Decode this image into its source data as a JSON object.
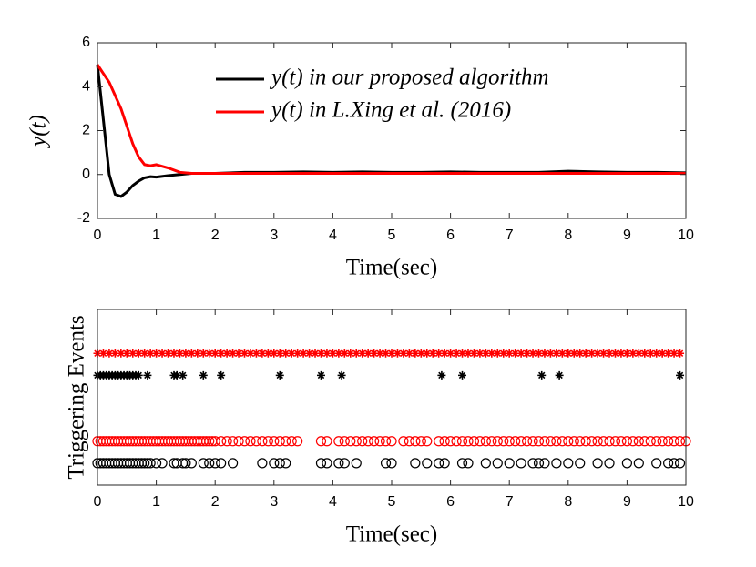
{
  "chart_data": [
    {
      "type": "line",
      "ylabel": "y(t)",
      "xlabel": "Time(sec)",
      "xlim": [
        0,
        10
      ],
      "ylim": [
        -2,
        6
      ],
      "xticks": [
        0,
        1,
        2,
        3,
        4,
        5,
        6,
        7,
        8,
        9,
        10
      ],
      "yticks": [
        -2,
        0,
        2,
        4,
        6
      ],
      "legend": "upper right",
      "x": [
        0,
        0.1,
        0.2,
        0.3,
        0.4,
        0.5,
        0.6,
        0.7,
        0.8,
        0.9,
        1.0,
        1.2,
        1.4,
        1.6,
        1.8,
        2,
        2.5,
        3,
        3.5,
        4,
        4.5,
        5,
        5.5,
        6,
        6.5,
        7,
        7.5,
        8,
        8.5,
        9,
        9.5,
        10
      ],
      "series": [
        {
          "name": "y(t) in our proposed algorithm",
          "color": "#000000",
          "values": [
            5,
            2.5,
            0,
            -0.9,
            -1.0,
            -0.8,
            -0.5,
            -0.3,
            -0.15,
            -0.1,
            -0.12,
            -0.05,
            0,
            0.05,
            0.05,
            0.05,
            0.1,
            0.1,
            0.12,
            0.1,
            0.12,
            0.1,
            0.1,
            0.12,
            0.1,
            0.1,
            0.1,
            0.15,
            0.12,
            0.1,
            0.1,
            0.08
          ]
        },
        {
          "name": "y(t) in  L.Xing et al. (2016)",
          "color": "#ff0000",
          "values": [
            5,
            4.6,
            4.2,
            3.6,
            3.0,
            2.2,
            1.4,
            0.8,
            0.45,
            0.4,
            0.45,
            0.3,
            0.1,
            0.05,
            0.05,
            0.05,
            0.05,
            0.05,
            0.05,
            0.05,
            0.05,
            0.05,
            0.05,
            0.05,
            0.05,
            0.05,
            0.05,
            0.05,
            0.05,
            0.05,
            0.05,
            0.05
          ]
        }
      ]
    },
    {
      "type": "scatter",
      "ylabel": "Triggering Events",
      "xlabel": "Time(sec)",
      "xlim": [
        0,
        10
      ],
      "ylim": [
        0,
        8
      ],
      "xticks": [
        0,
        1,
        2,
        3,
        4,
        5,
        6,
        7,
        8,
        9,
        10
      ],
      "series": [
        {
          "color": "#ff0000",
          "marker": "star",
          "y": 6,
          "x": [
            0,
            0.1,
            0.2,
            0.3,
            0.4,
            0.5,
            0.6,
            0.7,
            0.8,
            0.9,
            1.0,
            1.1,
            1.2,
            1.3,
            1.4,
            1.5,
            1.6,
            1.7,
            1.8,
            1.9,
            2.0,
            2.1,
            2.2,
            2.3,
            2.4,
            2.5,
            2.6,
            2.7,
            2.8,
            2.9,
            3.0,
            3.1,
            3.2,
            3.3,
            3.4,
            3.5,
            3.6,
            3.7,
            3.8,
            3.9,
            4.0,
            4.1,
            4.2,
            4.3,
            4.4,
            4.5,
            4.6,
            4.7,
            4.8,
            4.9,
            5.0,
            5.1,
            5.2,
            5.3,
            5.4,
            5.5,
            5.6,
            5.7,
            5.8,
            5.9,
            6.0,
            6.1,
            6.2,
            6.3,
            6.4,
            6.5,
            6.6,
            6.7,
            6.8,
            6.9,
            7.0,
            7.1,
            7.2,
            7.3,
            7.4,
            7.5,
            7.6,
            7.7,
            7.8,
            7.9,
            8.0,
            8.1,
            8.2,
            8.3,
            8.4,
            8.5,
            8.6,
            8.7,
            8.8,
            8.9,
            9.0,
            9.1,
            9.2,
            9.3,
            9.4,
            9.5,
            9.6,
            9.7,
            9.8,
            9.9
          ]
        },
        {
          "color": "#000000",
          "marker": "star",
          "y": 5,
          "x": [
            0,
            0.05,
            0.1,
            0.15,
            0.2,
            0.25,
            0.3,
            0.35,
            0.4,
            0.45,
            0.5,
            0.55,
            0.6,
            0.65,
            0.7,
            0.85,
            1.3,
            1.35,
            1.45,
            1.8,
            2.1,
            3.1,
            3.8,
            4.15,
            5.85,
            6.2,
            7.55,
            7.85,
            9.9
          ]
        },
        {
          "color": "#ff0000",
          "marker": "circle",
          "y": 2,
          "x": [
            0,
            0.05,
            0.1,
            0.15,
            0.2,
            0.25,
            0.3,
            0.35,
            0.4,
            0.45,
            0.5,
            0.55,
            0.6,
            0.65,
            0.7,
            0.75,
            0.8,
            0.85,
            0.9,
            0.95,
            1.0,
            1.05,
            1.1,
            1.15,
            1.2,
            1.25,
            1.3,
            1.35,
            1.4,
            1.45,
            1.5,
            1.55,
            1.6,
            1.65,
            1.7,
            1.75,
            1.8,
            1.85,
            1.9,
            1.95,
            2.0,
            2.1,
            2.2,
            2.3,
            2.4,
            2.5,
            2.6,
            2.7,
            2.8,
            2.9,
            3.0,
            3.1,
            3.2,
            3.3,
            3.4,
            3.8,
            3.9,
            4.1,
            4.2,
            4.3,
            4.4,
            4.5,
            4.6,
            4.7,
            4.8,
            4.9,
            5.0,
            5.2,
            5.3,
            5.4,
            5.5,
            5.6,
            5.8,
            5.9,
            6.0,
            6.1,
            6.2,
            6.3,
            6.4,
            6.5,
            6.6,
            6.7,
            6.8,
            6.9,
            7.0,
            7.1,
            7.2,
            7.3,
            7.4,
            7.5,
            7.6,
            7.7,
            7.8,
            7.9,
            8.0,
            8.1,
            8.2,
            8.3,
            8.4,
            8.5,
            8.6,
            8.7,
            8.8,
            8.9,
            9.0,
            9.1,
            9.2,
            9.3,
            9.4,
            9.5,
            9.6,
            9.7,
            9.8,
            9.9,
            10.0
          ]
        },
        {
          "color": "#000000",
          "marker": "circle",
          "y": 1,
          "x": [
            0,
            0.05,
            0.1,
            0.15,
            0.2,
            0.25,
            0.3,
            0.35,
            0.4,
            0.45,
            0.5,
            0.55,
            0.6,
            0.65,
            0.7,
            0.75,
            0.8,
            0.85,
            0.9,
            1.0,
            1.1,
            1.3,
            1.35,
            1.45,
            1.5,
            1.6,
            1.8,
            1.9,
            2.0,
            2.1,
            2.3,
            2.8,
            3.0,
            3.1,
            3.2,
            3.8,
            3.9,
            4.1,
            4.2,
            4.4,
            4.9,
            5.0,
            5.4,
            5.6,
            5.8,
            5.9,
            6.2,
            6.3,
            6.6,
            6.8,
            7.0,
            7.2,
            7.4,
            7.5,
            7.6,
            7.8,
            8.0,
            8.2,
            8.5,
            8.7,
            9.0,
            9.2,
            9.5,
            9.7,
            9.8,
            9.9
          ]
        }
      ]
    }
  ]
}
